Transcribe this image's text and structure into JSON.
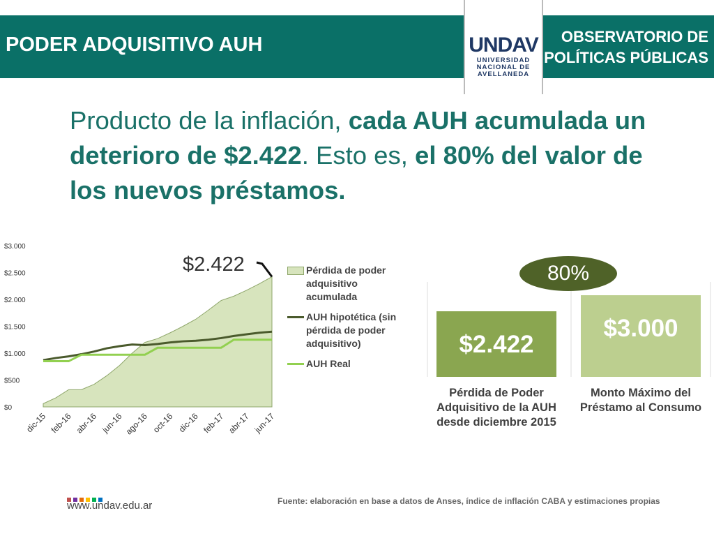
{
  "header": {
    "title": "PODER ADQUISITIVO AUH",
    "org": "OBSERVATORIO DE POLÍTICAS PÚBLICAS",
    "logo": "UNDAV",
    "logo_sub": [
      "UNIVERSIDAD",
      "NACIONAL DE",
      "AVELLANEDA"
    ]
  },
  "headline": [
    "Producto de la inflación, ",
    "cada AUH acumulada un deterioro de $2.422",
    ". Esto es, ",
    "el 80% del valor de los nuevos préstamos."
  ],
  "chart_data": [
    {
      "type": "line",
      "categories": [
        "dic-15",
        null,
        "feb-16",
        null,
        "abr-16",
        null,
        "jun-16",
        null,
        "ago-16",
        null,
        "oct-16",
        null,
        "dic-16",
        null,
        "feb-17",
        null,
        "abr-17",
        null,
        "jun-17"
      ],
      "series": [
        {
          "name": "Pérdida de poder adquisitivo acumulada",
          "kind": "area",
          "color": "#d7e4bd",
          "values": [
            60,
            170,
            320,
            320,
            420,
            580,
            770,
            1000,
            1200,
            1270,
            1380,
            1500,
            1630,
            1800,
            1980,
            2060,
            2170,
            2290,
            2422
          ]
        },
        {
          "name": "AUH hipotética (sin pérdida de poder adquisitivo)",
          "kind": "line",
          "color": "#4a5a2c",
          "values": [
            870,
            910,
            940,
            980,
            1030,
            1090,
            1130,
            1160,
            1150,
            1170,
            1200,
            1220,
            1230,
            1250,
            1280,
            1320,
            1350,
            1380,
            1400
          ]
        },
        {
          "name": "AUH Real",
          "kind": "line",
          "color": "#92d050",
          "values": [
            850,
            850,
            850,
            970,
            970,
            970,
            970,
            970,
            970,
            1100,
            1100,
            1100,
            1100,
            1100,
            1100,
            1250,
            1250,
            1250,
            1250
          ]
        }
      ],
      "ylim": [
        0,
        3000
      ],
      "yticks": [
        {
          "value": 0,
          "label": "$0"
        },
        {
          "value": 500,
          "label": "$500"
        },
        {
          "value": 1000,
          "label": "$1.000"
        },
        {
          "value": 1500,
          "label": "$1.500"
        },
        {
          "value": 2000,
          "label": "$2.000"
        },
        {
          "value": 2500,
          "label": "$2.500"
        },
        {
          "value": 3000,
          "label": "$3.000"
        }
      ],
      "annotation": "$2.422"
    },
    {
      "type": "bar",
      "categories": [
        "Pérdida de Poder Adquisitivo de la AUH desde diciembre 2015",
        "Monto Máximo del Préstamo al Consumo"
      ],
      "values": [
        2422,
        3000
      ],
      "value_labels": [
        "$2.422",
        "$3.000"
      ],
      "colors": [
        "#8aa650",
        "#bccf8f"
      ],
      "annotation": "80%"
    }
  ],
  "footer": {
    "url": "www.undav.edu.ar",
    "source": "Fuente: elaboración en base a datos de Anses, índice de inflación CABA y estimaciones propias"
  }
}
